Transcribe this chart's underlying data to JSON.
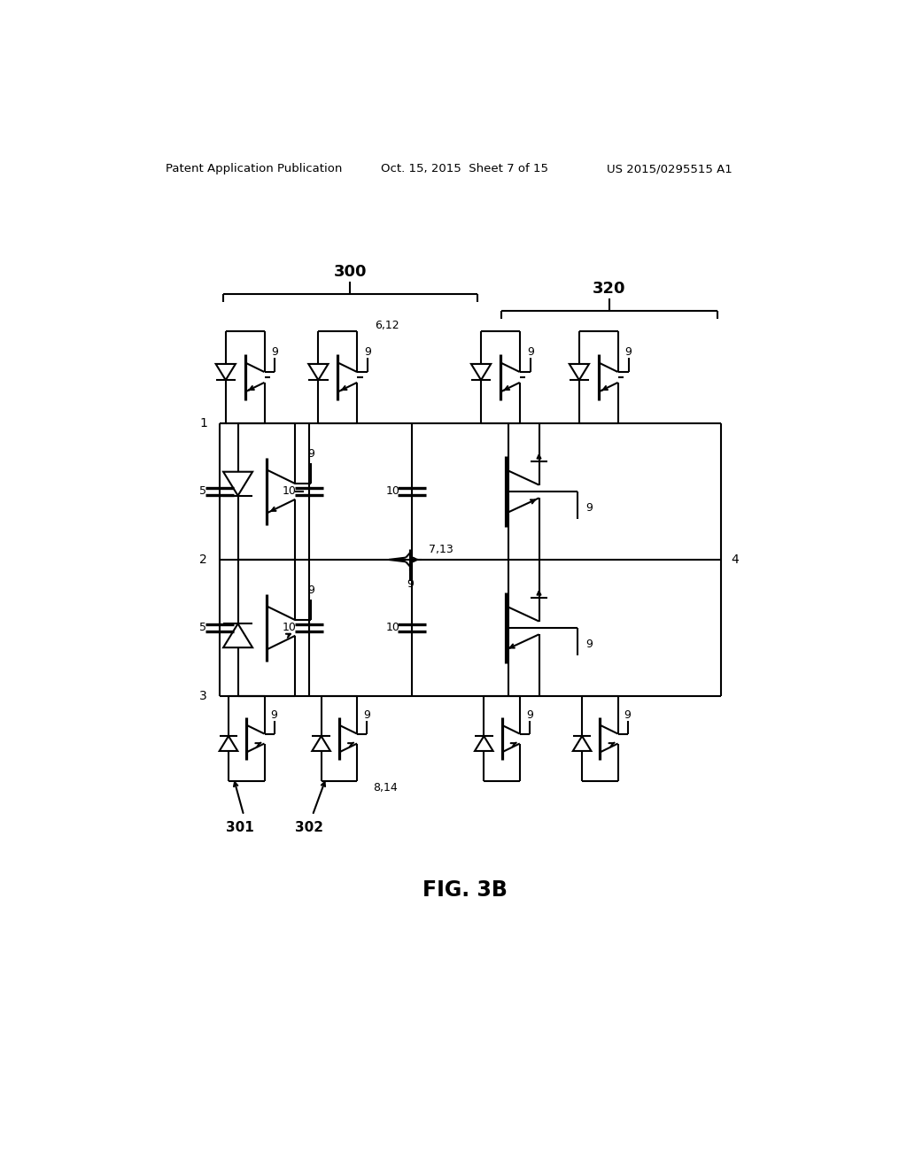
{
  "background_color": "#ffffff",
  "header_left": "Patent Application Publication",
  "header_center": "Oct. 15, 2015  Sheet 7 of 15",
  "header_right": "US 2015/0295515 A1",
  "figure_label": "FIG. 3B",
  "label_300": "300",
  "label_320": "320",
  "label_301": "301",
  "label_302": "302",
  "xL": 1.55,
  "xR": 8.85,
  "x1c": 2.85,
  "x2c": 4.35,
  "x3c": 5.75,
  "x4c": 7.15,
  "yT": 9.05,
  "yM": 7.05,
  "yB": 5.05,
  "ytop_sw": 10.4,
  "ybot_sw": 3.8,
  "fs": 9,
  "lw": 1.5
}
